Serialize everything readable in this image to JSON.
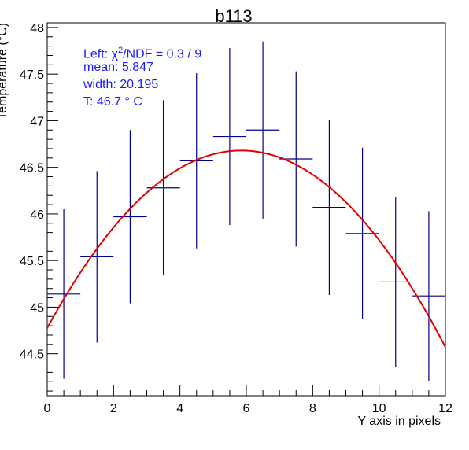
{
  "chart_data": {
    "type": "scatter",
    "title": "b113",
    "xlabel": "Y axis in pixels",
    "ylabel": "Temperature (°C)",
    "xlim": [
      0,
      12
    ],
    "ylim": [
      44.05,
      48.05
    ],
    "x_ticks": [
      "0",
      "2",
      "4",
      "6",
      "8",
      "10",
      "12"
    ],
    "y_ticks": [
      "44.5",
      "45",
      "45.5",
      "46",
      "46.5",
      "47",
      "47.5",
      "48"
    ],
    "series": [
      {
        "kind": "points_with_errors",
        "color": "#00008b",
        "x": [
          0.5,
          1.5,
          2.5,
          3.5,
          4.5,
          5.5,
          6.5,
          7.5,
          8.5,
          9.5,
          10.5,
          11.5
        ],
        "x_err": 0.5,
        "y": [
          45.14,
          45.54,
          45.97,
          46.28,
          46.57,
          46.83,
          46.9,
          46.59,
          46.07,
          45.79,
          45.27,
          45.12
        ],
        "y_err": [
          0.91,
          0.92,
          0.93,
          0.94,
          0.94,
          0.95,
          0.95,
          0.94,
          0.94,
          0.92,
          0.91,
          0.91
        ]
      },
      {
        "kind": "fit_curve",
        "color": "#e00000",
        "function": "parabola",
        "peak_x": 5.847,
        "peak_y": 46.68,
        "curvature": -0.0557,
        "x_range": [
          0,
          12
        ]
      }
    ],
    "stats": {
      "line1_prefix": "Left: χ",
      "line1_sup": "2",
      "line1_suffix": "/NDF = 0.3 / 9",
      "line2": "mean: 5.847",
      "line3": "width: 20.195",
      "line4": "T: 46.7  ° C"
    }
  }
}
